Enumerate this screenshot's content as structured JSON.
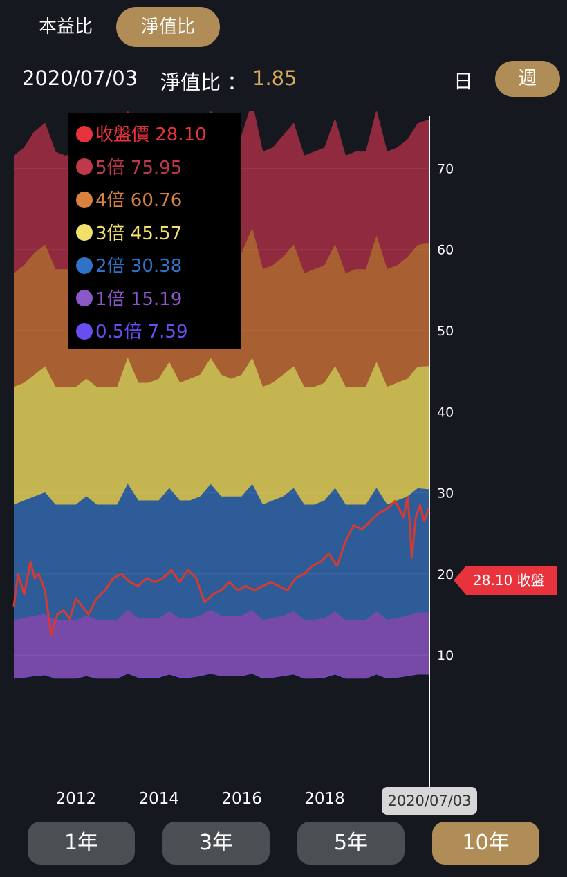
{
  "tabs": {
    "pe_label": "本益比",
    "pb_label": "淨值比"
  },
  "info": {
    "date": "2020/07/03",
    "ratio_label": "淨值比 ：",
    "ratio_value": "1.85"
  },
  "period": {
    "day_label": "日",
    "week_label": "週"
  },
  "legend": [
    {
      "label": "收盤價 28.10",
      "color": "#e8323c"
    },
    {
      "label": "5倍 75.95",
      "color": "#c0394a"
    },
    {
      "label": "4倍 60.76",
      "color": "#d9823f"
    },
    {
      "label": "3倍 45.57",
      "color": "#f2e06a"
    },
    {
      "label": "2倍 30.38",
      "color": "#2f73c9"
    },
    {
      "label": "1倍 15.19",
      "color": "#8b58c8"
    },
    {
      "label": "0.5倍 7.59",
      "color": "#6a4df0"
    }
  ],
  "price_tag": "28.10 收盤",
  "cursor_date": "2020/07/03",
  "range_buttons": [
    "1年",
    "3年",
    "5年",
    "10年"
  ],
  "chart_data": {
    "type": "area",
    "y_axis": {
      "min": 0,
      "max": 82,
      "ticks": [
        10,
        20,
        30,
        40,
        50,
        60,
        70,
        80
      ],
      "position": "right"
    },
    "x_axis": {
      "range": [
        2010.5,
        2020.51
      ],
      "ticks": [
        2012,
        2014,
        2016,
        2018
      ]
    },
    "x": [
      2010.5,
      2010.75,
      2011.0,
      2011.25,
      2011.5,
      2011.75,
      2012.0,
      2012.25,
      2012.5,
      2012.75,
      2013.0,
      2013.25,
      2013.5,
      2013.75,
      2014.0,
      2014.25,
      2014.5,
      2014.75,
      2015.0,
      2015.25,
      2015.5,
      2015.75,
      2016.0,
      2016.25,
      2016.5,
      2016.75,
      2017.0,
      2017.25,
      2017.5,
      2017.75,
      2018.0,
      2018.25,
      2018.5,
      2018.75,
      2019.0,
      2019.25,
      2019.5,
      2019.75,
      2020.0,
      2020.25,
      2020.51
    ],
    "series": [
      {
        "name": "5倍",
        "color": "#8f2a3f",
        "values": [
          71.5,
          72.5,
          74.5,
          75.5,
          72.0,
          71.5,
          72.0,
          73.5,
          71.5,
          72.0,
          72.0,
          77.0,
          73.0,
          72.5,
          73.0,
          76.5,
          72.5,
          73.0,
          74.0,
          77.0,
          74.0,
          73.5,
          74.0,
          78.0,
          72.0,
          72.5,
          74.0,
          75.5,
          71.5,
          72.0,
          72.5,
          76.0,
          71.5,
          72.0,
          72.0,
          77.0,
          72.0,
          72.5,
          73.5,
          75.5,
          75.95
        ]
      },
      {
        "name": "4倍",
        "color": "#a85f31",
        "values": [
          57.0,
          58.0,
          59.5,
          60.5,
          57.5,
          57.5,
          57.5,
          59.0,
          57.0,
          57.5,
          57.5,
          61.5,
          58.5,
          58.0,
          58.5,
          61.0,
          58.0,
          58.5,
          59.0,
          61.5,
          59.0,
          59.0,
          59.5,
          62.5,
          57.5,
          58.0,
          59.0,
          60.5,
          57.0,
          57.5,
          58.0,
          60.5,
          57.0,
          57.5,
          57.5,
          61.5,
          57.5,
          58.0,
          59.0,
          60.5,
          60.76
        ]
      },
      {
        "name": "3倍",
        "color": "#c4b551",
        "values": [
          43.0,
          43.5,
          44.5,
          45.5,
          43.0,
          43.0,
          43.0,
          44.0,
          43.0,
          43.0,
          43.0,
          46.5,
          43.5,
          43.5,
          44.0,
          46.0,
          43.5,
          44.0,
          44.5,
          46.5,
          44.5,
          44.0,
          44.5,
          46.5,
          43.0,
          43.5,
          44.5,
          45.5,
          43.0,
          43.0,
          43.5,
          45.5,
          43.0,
          43.0,
          43.0,
          46.0,
          43.0,
          43.5,
          44.0,
          45.5,
          45.57
        ]
      },
      {
        "name": "2倍",
        "color": "#2e5c99",
        "values": [
          28.5,
          29.0,
          29.5,
          30.0,
          28.5,
          28.5,
          28.5,
          29.5,
          28.5,
          28.5,
          28.5,
          31.0,
          29.0,
          29.0,
          29.0,
          30.5,
          29.0,
          29.0,
          29.5,
          31.0,
          29.5,
          29.5,
          29.5,
          31.0,
          28.5,
          29.0,
          29.5,
          30.5,
          28.5,
          28.5,
          29.0,
          30.5,
          28.5,
          28.5,
          28.5,
          30.5,
          28.5,
          29.0,
          29.5,
          30.5,
          30.38
        ]
      },
      {
        "name": "1倍",
        "color": "#774aaa",
        "values": [
          14.3,
          14.5,
          14.8,
          15.0,
          14.3,
          14.3,
          14.3,
          14.8,
          14.3,
          14.3,
          14.3,
          15.5,
          14.5,
          14.5,
          14.5,
          15.3,
          14.5,
          14.5,
          14.8,
          15.5,
          14.8,
          14.8,
          14.8,
          15.5,
          14.3,
          14.5,
          14.8,
          15.3,
          14.3,
          14.3,
          14.5,
          15.3,
          14.3,
          14.3,
          14.3,
          15.3,
          14.3,
          14.5,
          14.8,
          15.2,
          15.19
        ]
      },
      {
        "name": "0.5倍",
        "color": "#6a4de0",
        "values": [
          7.1,
          7.2,
          7.4,
          7.5,
          7.1,
          7.1,
          7.1,
          7.4,
          7.1,
          7.1,
          7.1,
          7.7,
          7.2,
          7.2,
          7.2,
          7.6,
          7.2,
          7.2,
          7.4,
          7.7,
          7.4,
          7.4,
          7.4,
          7.7,
          7.1,
          7.2,
          7.4,
          7.6,
          7.1,
          7.1,
          7.2,
          7.6,
          7.1,
          7.1,
          7.1,
          7.6,
          7.1,
          7.2,
          7.4,
          7.6,
          7.59
        ]
      }
    ],
    "price": {
      "name": "收盤價",
      "color": "#d73a2e",
      "x": [
        2010.5,
        2010.6,
        2010.75,
        2010.9,
        2011.0,
        2011.1,
        2011.25,
        2011.4,
        2011.55,
        2011.7,
        2011.85,
        2012.0,
        2012.15,
        2012.3,
        2012.5,
        2012.7,
        2012.9,
        2013.1,
        2013.3,
        2013.5,
        2013.7,
        2013.9,
        2014.1,
        2014.3,
        2014.5,
        2014.7,
        2014.9,
        2015.1,
        2015.3,
        2015.5,
        2015.7,
        2015.9,
        2016.1,
        2016.3,
        2016.5,
        2016.7,
        2016.9,
        2017.1,
        2017.3,
        2017.5,
        2017.7,
        2017.9,
        2018.1,
        2018.3,
        2018.5,
        2018.7,
        2018.9,
        2019.1,
        2019.3,
        2019.5,
        2019.7,
        2019.9,
        2020.0,
        2020.05,
        2020.1,
        2020.2,
        2020.3,
        2020.4,
        2020.51
      ],
      "values": [
        16.0,
        20.0,
        17.5,
        21.5,
        19.5,
        20.0,
        18.0,
        12.5,
        15.0,
        15.5,
        14.5,
        17.0,
        16.0,
        15.0,
        17.0,
        18.0,
        19.5,
        20.0,
        19.0,
        18.5,
        19.5,
        19.0,
        19.5,
        20.5,
        19.0,
        20.5,
        19.5,
        16.5,
        17.5,
        18.0,
        19.0,
        18.0,
        18.5,
        18.0,
        18.5,
        19.0,
        18.5,
        18.0,
        19.5,
        20.0,
        21.0,
        21.5,
        22.5,
        21.0,
        24.0,
        26.0,
        25.5,
        26.5,
        27.5,
        28.0,
        29.0,
        27.0,
        29.5,
        26.5,
        22.0,
        27.0,
        28.5,
        26.5,
        28.1
      ]
    }
  }
}
